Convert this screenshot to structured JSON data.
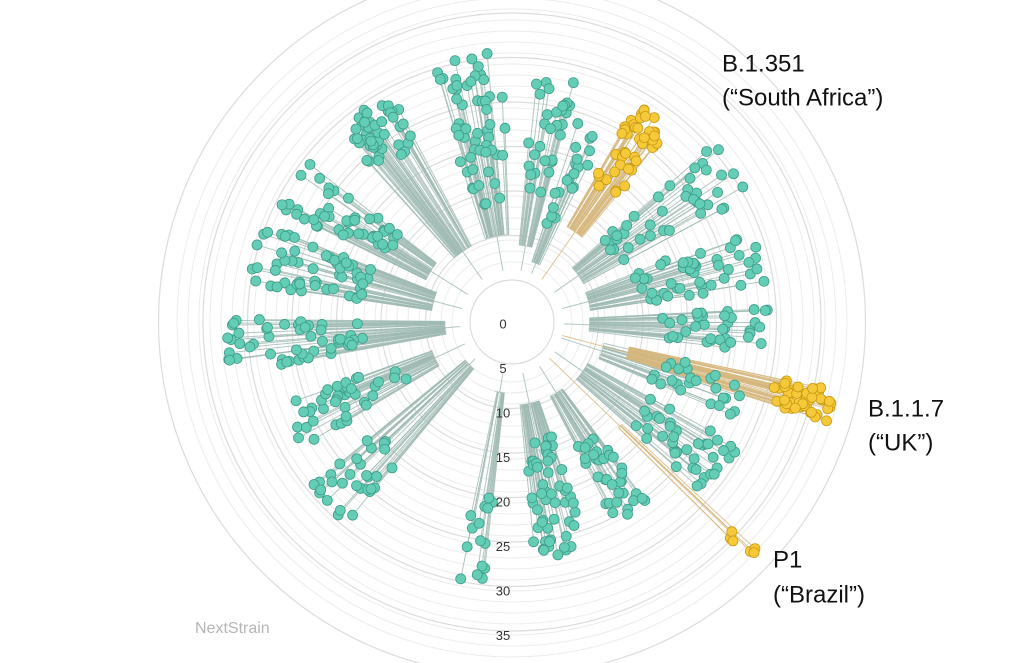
{
  "labels": [
    {
      "name": "B.1.351",
      "note": "(“South Africa”)"
    },
    {
      "name": "B.1.1.7",
      "note": "(“UK”)"
    },
    {
      "name": "P1",
      "note": "(“Brazil”)"
    }
  ],
  "scale_ticks": [
    0,
    5,
    10,
    15,
    20,
    25,
    30,
    35
  ],
  "watermark": "NextStrain"
}
